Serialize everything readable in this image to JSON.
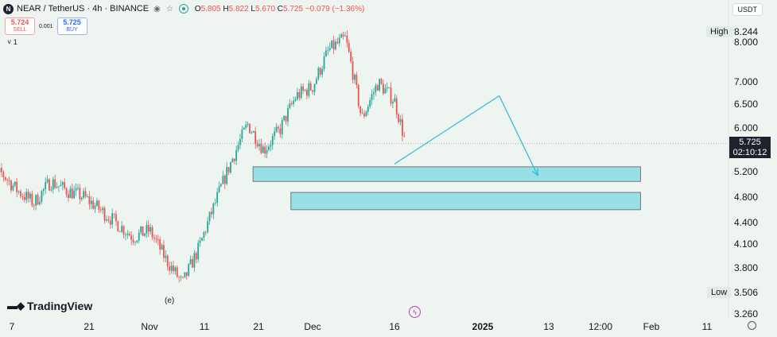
{
  "header": {
    "title": "NEAR / TetherUS · 4h · BINANCE",
    "coin_glyph": "N",
    "ohlc": {
      "o_label": "O",
      "o": "5.805",
      "h_label": "H",
      "h": "5.822",
      "l_label": "L",
      "l": "5.670",
      "c_label": "C",
      "c": "5.725",
      "change": "−0.079 (−1.36%)"
    },
    "up_color": "#26a69a",
    "down_color": "#ef5350"
  },
  "trade": {
    "sell_price": "5.724",
    "sell_label": "SELL",
    "spread": "0.001",
    "buy_price": "5.725",
    "buy_label": "BUY",
    "collapse": "1"
  },
  "currency": "USDT",
  "price_scale": {
    "high_label": "High",
    "high_value": "8.244",
    "low_label": "Low",
    "low_value": "3.506",
    "ticks": [
      "8.000",
      "7.000",
      "6.500",
      "6.000",
      "5.200",
      "4.800",
      "4.400",
      "4.100",
      "3.800",
      "3.260"
    ],
    "last_price": "5.725",
    "countdown": "02:10:12"
  },
  "time_axis": {
    "labels": [
      "7",
      "21",
      "Nov",
      "11",
      "21",
      "Dec",
      "16",
      "2025",
      "13",
      "12:00",
      "Feb",
      "11"
    ],
    "bold": "2025"
  },
  "brand": "TradingView",
  "wave_label": "(e)",
  "colors": {
    "zone_fill": "#98dfe6",
    "zone_stroke": "#6b7b80",
    "projection": "#3cbdd6"
  },
  "chart_data": {
    "type": "candlestick",
    "series": [
      {
        "name": "",
        "x": [
          "Oct 2",
          "Oct 5",
          "Oct 8",
          "Oct 11",
          "Oct 14",
          "Oct 17",
          "Oct 20",
          "Oct 23",
          "Oct 26",
          "Oct 29",
          "Nov 1",
          "Nov 4",
          "Nov 7",
          "Nov 10",
          "Nov 13",
          "Nov 16",
          "Nov 19",
          "Nov 22",
          "Nov 25",
          "Nov 28",
          "Dec 1",
          "Dec 4",
          "Dec 7",
          "Dec 10",
          "Dec 13",
          "Dec 16",
          "Dec 18"
        ],
        "close": [
          4.8,
          5.2,
          4.9,
          4.7,
          5.05,
          4.9,
          4.8,
          4.6,
          4.4,
          4.2,
          4.3,
          3.9,
          3.6,
          4.05,
          4.7,
          5.4,
          6.1,
          5.6,
          6.0,
          6.7,
          6.9,
          7.8,
          8.1,
          6.2,
          7.0,
          6.6,
          5.725
        ]
      }
    ],
    "zones": [
      {
        "start": "Nov 20",
        "end": "Jan 30",
        "low": 5.05,
        "high": 5.3
      },
      {
        "start": "Nov 27",
        "end": "Jan 30",
        "low": 4.6,
        "high": 4.87
      }
    ],
    "projection": [
      {
        "date": "Dec 16",
        "price": 5.35
      },
      {
        "date": "Jan 4",
        "price": 6.7
      },
      {
        "date": "Jan 11",
        "price": 5.15
      }
    ],
    "ylim": [
      3.26,
      8.244
    ],
    "y_scale": "log",
    "grid": false
  }
}
